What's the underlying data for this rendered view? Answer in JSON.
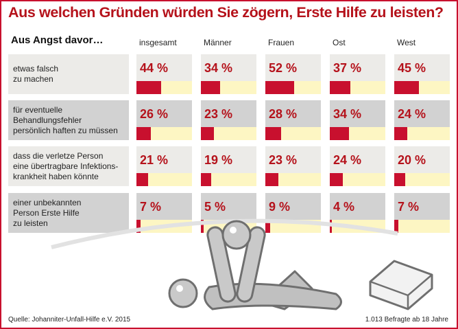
{
  "chart_data": {
    "type": "bar",
    "title": "Aus welchen Gründen würden Sie zögern, Erste Hilfe zu leisten?",
    "row_header": "Aus Angst davor…",
    "columns": [
      "insgesamt",
      "Männer",
      "Frauen",
      "Ost",
      "West"
    ],
    "rows": [
      {
        "label": "etwas falsch\nzu machen",
        "values": [
          44,
          34,
          52,
          37,
          45
        ],
        "display": [
          "44 %",
          "34 %",
          "52 %",
          "37 %",
          "45 %"
        ]
      },
      {
        "label": "für eventuelle\nBehandlungsfehler\npersönlich haften zu müssen",
        "values": [
          26,
          23,
          28,
          34,
          24
        ],
        "display": [
          "26 %",
          "23 %",
          "28 %",
          "34 %",
          "24 %"
        ]
      },
      {
        "label": "dass die verletze Person\neine übertragbare Infektions-\nkrankheit haben könnte",
        "values": [
          21,
          19,
          23,
          24,
          20
        ],
        "display": [
          "21 %",
          "19 %",
          "23 %",
          "24 %",
          "20 %"
        ]
      },
      {
        "label": "einer unbekannten\nPerson Erste Hilfe\nzu leisten",
        "values": [
          7,
          5,
          9,
          4,
          7
        ],
        "display": [
          "7 %",
          "5 %",
          "9 %",
          "4 %",
          "7 %"
        ]
      }
    ],
    "unit": "%",
    "xlim": [
      0,
      100
    ],
    "colors": {
      "bar": "#c8102e",
      "track": "#fdf6c3",
      "title": "#b5121b",
      "row_light": "#ecebe8",
      "row_dark": "#d2d2d2"
    }
  },
  "footer": {
    "source": "Quelle: Johanniter-Unfall-Hilfe e.V. 2015",
    "sample": "1.013 Befragte ab 18 Jahre"
  },
  "illustration": "first-aid-cpr-figures-icon"
}
